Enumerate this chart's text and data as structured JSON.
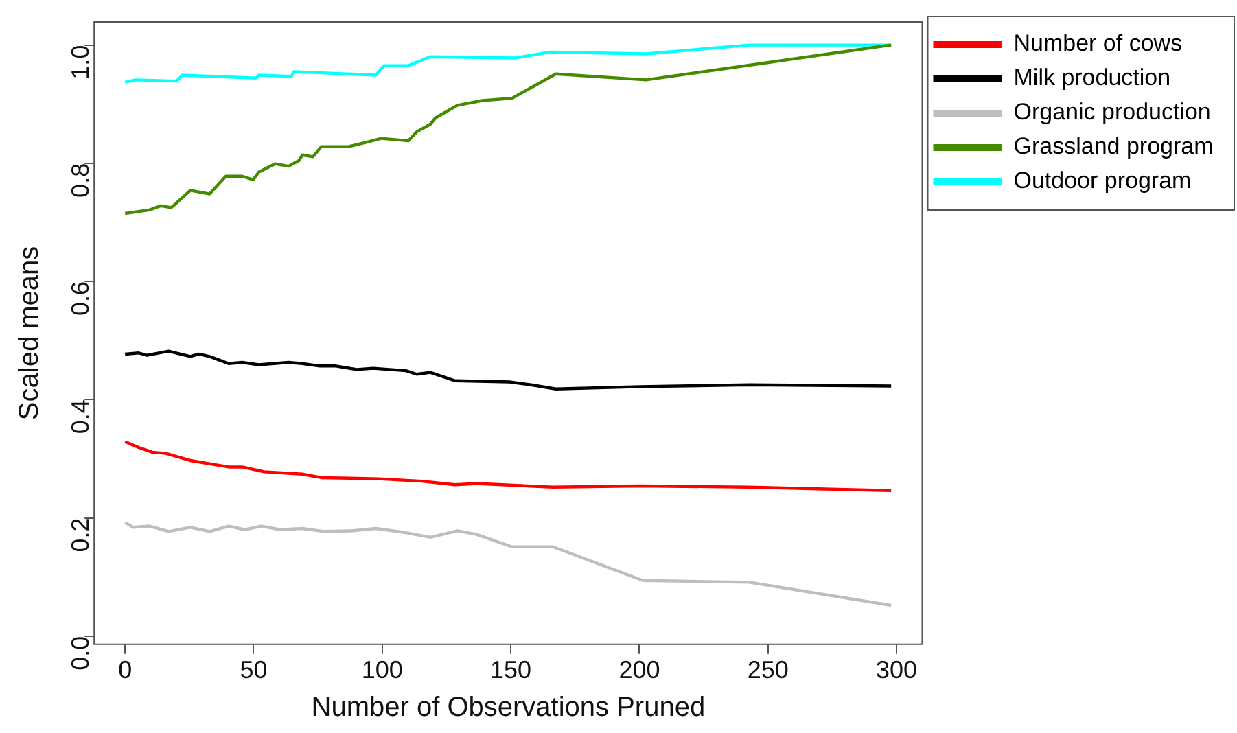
{
  "chart_data": {
    "type": "line",
    "xlabel": "Number of Observations Pruned",
    "ylabel": "Scaled means",
    "xlim": [
      -12,
      310
    ],
    "ylim": [
      -0.014,
      1.039
    ],
    "xticks": [
      0,
      50,
      100,
      150,
      200,
      250,
      300
    ],
    "yticks": [
      {
        "value": 0,
        "label": "0.0"
      },
      {
        "value": 0.2,
        "label": "0.2"
      },
      {
        "value": 0.4,
        "label": "0.4"
      },
      {
        "value": 0.6,
        "label": "0.6"
      },
      {
        "value": 0.8,
        "label": "0.8"
      },
      {
        "value": 1,
        "label": "1.0"
      }
    ],
    "legend": "top right",
    "line_style": "solid",
    "marker": "none",
    "series": [
      {
        "name": "Number of cows",
        "color": "#ff0000",
        "x": [
          0,
          5.3,
          10.6,
          15.9,
          25.4,
          40.3,
          45.6,
          54.1,
          68.9,
          76.3,
          98.6,
          115.5,
          128.3,
          136.7,
          166.4,
          200.3,
          242.7,
          297.9
        ],
        "values": [
          0.329,
          0.319,
          0.311,
          0.309,
          0.297,
          0.286,
          0.286,
          0.278,
          0.274,
          0.268,
          0.266,
          0.262,
          0.256,
          0.258,
          0.252,
          0.254,
          0.252,
          0.246
        ]
      },
      {
        "name": "Milk production",
        "color": "#000000",
        "x": [
          0,
          5.3,
          8.5,
          17,
          25.4,
          28.6,
          32.9,
          40.3,
          45.6,
          52,
          63.6,
          68.9,
          75.3,
          81.6,
          90.1,
          96.5,
          109.2,
          113.4,
          118.7,
          128.3,
          149.5,
          157.9,
          167.5,
          200.3,
          242.7,
          297.9
        ],
        "values": [
          0.477,
          0.479,
          0.475,
          0.482,
          0.473,
          0.477,
          0.473,
          0.461,
          0.463,
          0.459,
          0.463,
          0.461,
          0.457,
          0.457,
          0.451,
          0.453,
          0.449,
          0.443,
          0.446,
          0.432,
          0.43,
          0.425,
          0.418,
          0.422,
          0.425,
          0.423
        ]
      },
      {
        "name": "Organic production",
        "color": "#bebebe",
        "x": [
          0,
          3.2,
          9.5,
          17,
          25.4,
          32.9,
          40.3,
          46.6,
          53,
          60.4,
          68.9,
          77.4,
          88,
          97.5,
          109.2,
          118.7,
          129.3,
          136.7,
          150.5,
          166.4,
          201.4,
          242.7,
          297.9
        ],
        "values": [
          0.192,
          0.184,
          0.186,
          0.177,
          0.184,
          0.177,
          0.186,
          0.18,
          0.186,
          0.18,
          0.182,
          0.177,
          0.178,
          0.182,
          0.175,
          0.167,
          0.178,
          0.172,
          0.151,
          0.151,
          0.094,
          0.091,
          0.052
        ]
      },
      {
        "name": "Grassland program",
        "color": "#458b00",
        "x": [
          0,
          9.5,
          13.8,
          18,
          25.4,
          32.9,
          39.2,
          45.6,
          49.8,
          52,
          58.3,
          63.6,
          67.8,
          68.9,
          73.1,
          76.3,
          86.9,
          94.3,
          99.6,
          110.2,
          113.4,
          118.7,
          120.8,
          129.3,
          138.9,
          150.5,
          167.5,
          202.5,
          297.9
        ],
        "values": [
          0.715,
          0.721,
          0.728,
          0.725,
          0.754,
          0.748,
          0.778,
          0.778,
          0.772,
          0.785,
          0.799,
          0.795,
          0.805,
          0.814,
          0.811,
          0.828,
          0.828,
          0.836,
          0.842,
          0.838,
          0.853,
          0.866,
          0.877,
          0.898,
          0.906,
          0.91,
          0.951,
          0.941,
          1.0
        ]
      },
      {
        "name": "Outdoor program",
        "color": "#00ffff",
        "x": [
          0,
          4.2,
          20,
          22.3,
          50.9,
          52,
          64.7,
          65.7,
          97.5,
          100.7,
          110,
          118.7,
          151.6,
          165.4,
          202.5,
          242.7,
          297.9
        ],
        "values": [
          0.937,
          0.941,
          0.939,
          0.949,
          0.944,
          0.949,
          0.947,
          0.955,
          0.949,
          0.965,
          0.965,
          0.98,
          0.978,
          0.988,
          0.985,
          1.0,
          1.0
        ]
      }
    ]
  }
}
